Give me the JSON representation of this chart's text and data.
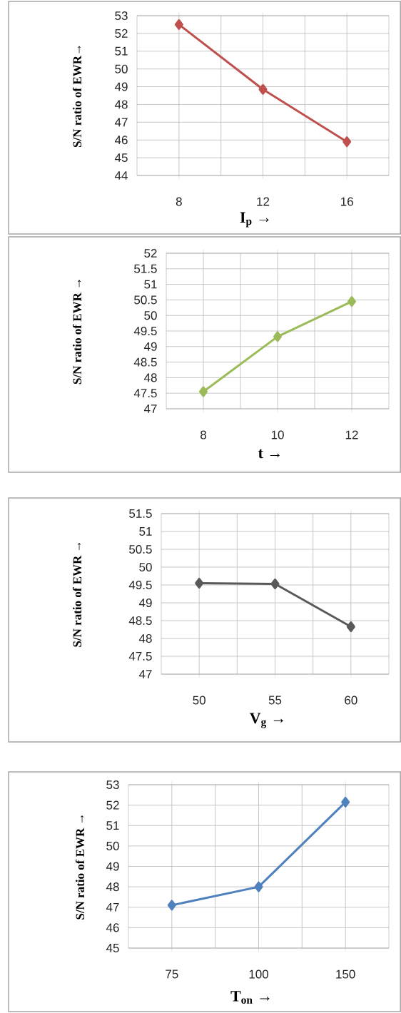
{
  "chart_data": [
    {
      "type": "line",
      "categories": [
        "8",
        "12",
        "16"
      ],
      "xlabel": "I$_{p}$  →",
      "ylabel": "S/N ratio of  EWR→",
      "ylim": [
        44,
        53
      ],
      "yticks": [
        44,
        45,
        46,
        47,
        48,
        49,
        50,
        51,
        52,
        53
      ],
      "grid": true,
      "marker": "diamond",
      "line_style": "solid",
      "series": [
        {
          "color": "#c0504d",
          "values": [
            52.5,
            48.85,
            45.9
          ]
        }
      ]
    },
    {
      "type": "line",
      "categories": [
        "8",
        "10",
        "12"
      ],
      "xlabel": "t  →",
      "ylabel": "S/N ratio of  EWR →",
      "ylim": [
        47,
        52
      ],
      "yticks": [
        47,
        47.5,
        48,
        48.5,
        49,
        49.5,
        50,
        50.5,
        51,
        51.5,
        52
      ],
      "grid": true,
      "marker": "diamond",
      "line_style": "solid",
      "series": [
        {
          "color": "#9bbb59",
          "values": [
            47.55,
            49.32,
            50.45
          ]
        }
      ]
    },
    {
      "type": "line",
      "categories": [
        "50",
        "55",
        "60"
      ],
      "xlabel": "V$_{g}$ →",
      "ylabel": "S/N ratio of  EWR  →",
      "ylim": [
        47,
        51.5
      ],
      "yticks": [
        47,
        47.5,
        48,
        48.5,
        49,
        49.5,
        50,
        50.5,
        51,
        51.5
      ],
      "grid": true,
      "marker": "diamond",
      "line_style": "solid",
      "series": [
        {
          "color": "#595959",
          "values": [
            49.55,
            49.53,
            48.33
          ]
        }
      ]
    },
    {
      "type": "line",
      "categories": [
        "75",
        "100",
        "150"
      ],
      "xlabel": "T$_{on}$ →",
      "ylabel": "S/N ratio of  EWR  →",
      "ylim": [
        45,
        53
      ],
      "yticks": [
        45,
        46,
        47,
        48,
        49,
        50,
        51,
        52,
        53
      ],
      "grid": true,
      "marker": "diamond",
      "line_style": "solid",
      "series": [
        {
          "color": "#4f81bd",
          "values": [
            47.1,
            48.0,
            52.15
          ]
        }
      ]
    }
  ]
}
